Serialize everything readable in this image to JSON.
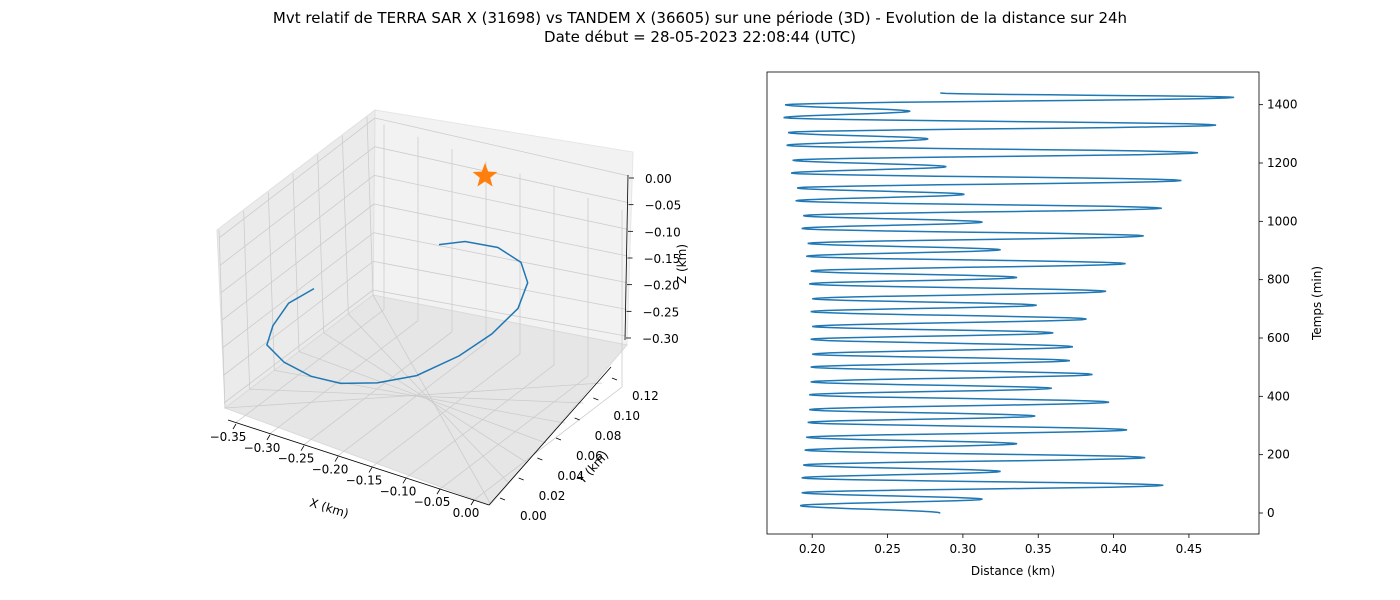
{
  "figure": {
    "title_line1": "Mvt relatif de TERRA SAR X (31698) vs TANDEM X (36605) sur une période (3D) - Evolution de la distance sur 24h",
    "title_line2": "Date début = 28-05-2023 22:08:44 (UTC)"
  },
  "colors": {
    "series": "#1f77b4",
    "marker": "#ff7f0e",
    "pane": "#f2f2f2",
    "grid": "#cccccc"
  },
  "chart_data": [
    {
      "type": "line3d",
      "xlabel": "X (km)",
      "ylabel": "Y (km)",
      "zlabel": "Z (km)",
      "xticks": [
        "−0.35",
        "−0.30",
        "−0.25",
        "−0.20",
        "−0.15",
        "−0.10",
        "−0.05",
        "0.00"
      ],
      "yticks": [
        "0.00",
        "0.02",
        "0.04",
        "0.06",
        "0.08",
        "0.10",
        "0.12"
      ],
      "zticks": [
        "0.00",
        "−0.05",
        "−0.10",
        "−0.15",
        "−0.20",
        "−0.25",
        "−0.30"
      ],
      "xlim": [
        -0.37,
        0.01
      ],
      "ylim": [
        -0.005,
        0.13
      ],
      "zlim": [
        -0.345,
        0.005
      ],
      "grid": true,
      "marker": {
        "symbol": "star",
        "x": 0,
        "y": 0,
        "z": 0
      },
      "points": [
        [
          -0.3,
          0.1,
          -0.11
        ],
        [
          -0.32,
          0.06,
          -0.12
        ],
        [
          -0.33,
          0.03,
          -0.15
        ],
        [
          -0.33,
          0.01,
          -0.18
        ],
        [
          -0.3,
          0.0,
          -0.22
        ],
        [
          -0.26,
          0.0,
          -0.26
        ],
        [
          -0.22,
          0.01,
          -0.29
        ],
        [
          -0.17,
          0.02,
          -0.31
        ],
        [
          -0.12,
          0.04,
          -0.32
        ],
        [
          -0.07,
          0.07,
          -0.31
        ],
        [
          -0.03,
          0.09,
          -0.29
        ],
        [
          0.0,
          0.11,
          -0.26
        ],
        [
          0.01,
          0.12,
          -0.22
        ],
        [
          0.0,
          0.12,
          -0.18
        ],
        [
          -0.03,
          0.11,
          -0.14
        ],
        [
          -0.07,
          0.09,
          -0.11
        ],
        [
          -0.1,
          0.07,
          -0.1
        ]
      ]
    },
    {
      "type": "line",
      "xlabel": "Distance (km)",
      "ylabel": "Temps (min)",
      "xticks": [
        "0.20",
        "0.25",
        "0.30",
        "0.35",
        "0.40",
        "0.45"
      ],
      "yticks": [
        "0",
        "200",
        "400",
        "600",
        "800",
        "1000",
        "1200",
        "1400"
      ],
      "xlim": [
        0.17,
        0.4965
      ],
      "ylim": [
        -72,
        1512
      ],
      "grid": false,
      "yaxis_side": "right",
      "period_min": 95,
      "t_max_min": 1440,
      "x_start": 0.285,
      "x_end": 0.285,
      "dips": [
        {
          "t": 47.5,
          "min": 0.192
        },
        {
          "t": 142.5,
          "min": 0.193
        },
        {
          "t": 237.5,
          "min": 0.195
        },
        {
          "t": 332.5,
          "min": 0.197
        },
        {
          "t": 427.5,
          "min": 0.198
        },
        {
          "t": 522.5,
          "min": 0.199
        },
        {
          "t": 617.5,
          "min": 0.199
        },
        {
          "t": 712.5,
          "min": 0.199
        },
        {
          "t": 807.5,
          "min": 0.198
        },
        {
          "t": 902.5,
          "min": 0.196
        },
        {
          "t": 997.5,
          "min": 0.193
        },
        {
          "t": 1092.5,
          "min": 0.189
        },
        {
          "t": 1187.5,
          "min": 0.186
        },
        {
          "t": 1282.5,
          "min": 0.183
        },
        {
          "t": 1377.5,
          "min": 0.181
        }
      ],
      "peaks": [
        {
          "t": 0,
          "max": 0.285
        },
        {
          "t": 95,
          "max": 0.433
        },
        {
          "t": 190,
          "max": 0.421
        },
        {
          "t": 285,
          "max": 0.409
        },
        {
          "t": 380,
          "max": 0.397
        },
        {
          "t": 475,
          "max": 0.386
        },
        {
          "t": 570,
          "max": 0.373
        },
        {
          "t": 665,
          "max": 0.382
        },
        {
          "t": 760,
          "max": 0.395
        },
        {
          "t": 855,
          "max": 0.408
        },
        {
          "t": 950,
          "max": 0.42
        },
        {
          "t": 1045,
          "max": 0.432
        },
        {
          "t": 1140,
          "max": 0.445
        },
        {
          "t": 1235,
          "max": 0.456
        },
        {
          "t": 1330,
          "max": 0.468
        },
        {
          "t": 1425,
          "max": 0.48
        },
        {
          "t": 1440,
          "max": 0.285
        }
      ],
      "minor_peaks": [
        {
          "t": 47.5,
          "max": 0.313
        },
        {
          "t": 142.5,
          "max": 0.325
        },
        {
          "t": 237.5,
          "max": 0.336
        },
        {
          "t": 332.5,
          "max": 0.348
        },
        {
          "t": 427.5,
          "max": 0.359
        },
        {
          "t": 522.5,
          "max": 0.371
        },
        {
          "t": 617.5,
          "max": 0.36
        },
        {
          "t": 712.5,
          "max": 0.349
        },
        {
          "t": 807.5,
          "max": 0.336
        },
        {
          "t": 902.5,
          "max": 0.325
        },
        {
          "t": 997.5,
          "max": 0.313
        },
        {
          "t": 1092.5,
          "max": 0.301
        },
        {
          "t": 1187.5,
          "max": 0.289
        },
        {
          "t": 1282.5,
          "max": 0.277
        },
        {
          "t": 1377.5,
          "max": 0.265
        }
      ]
    }
  ]
}
